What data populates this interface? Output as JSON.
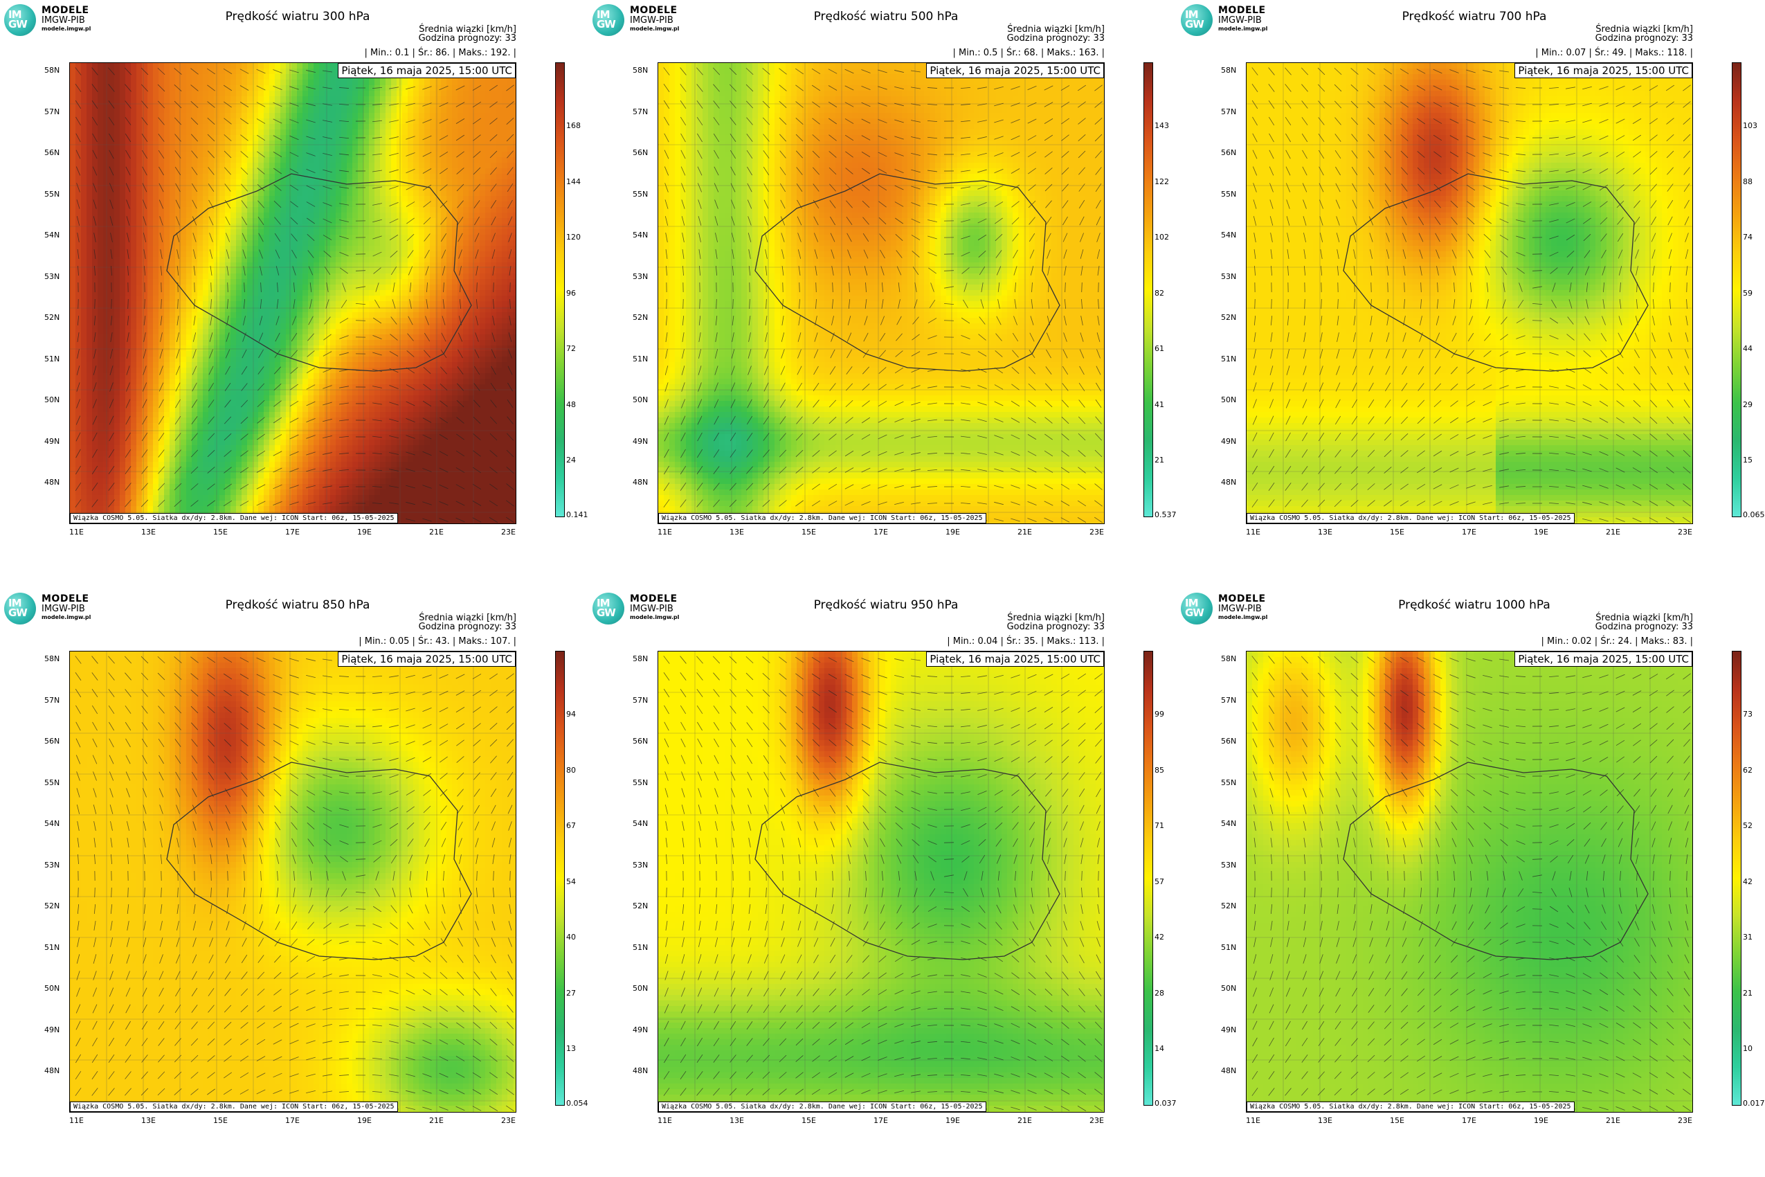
{
  "logo": {
    "line1": "MODELE",
    "line2": "IMGW-PIB",
    "line3": "modele.imgw.pl",
    "mark": "IM GW"
  },
  "common": {
    "info_line1": "Średnia wiązki [km/h]",
    "info_line2": "Godzina prognozy: 33",
    "date": "Piątek, 16 maja 2025, 15:00 UTC",
    "footer": "Wiązka COSMO 5.05. Siatka dx/dy: 2.8km. Dane wej: ICON Start: 06z, 15-05-2025",
    "lat_labels": [
      "58N",
      "57N",
      "56N",
      "55N",
      "54N",
      "53N",
      "52N",
      "51N",
      "50N",
      "49N",
      "48N"
    ],
    "lon_labels": [
      "11E",
      "13E",
      "15E",
      "17E",
      "19E",
      "21E",
      "23E"
    ]
  },
  "colorbar_colors": [
    "#5ee8d6",
    "#2fcf9e",
    "#2bb870",
    "#3cc24a",
    "#7fd435",
    "#c6e32a",
    "#fff200",
    "#fccd0c",
    "#f5a20f",
    "#ec7a15",
    "#d9531a",
    "#b8331b",
    "#7a2418"
  ],
  "panels": [
    {
      "title": "Prędkość wiatru 300 hPa",
      "stats": "| Min.:     0.1 | Śr.:     86. | Maks.:    192. |",
      "ticks": [
        "168",
        "144",
        "120",
        "96",
        "72",
        "48",
        "24",
        "0.141"
      ]
    },
    {
      "title": "Prędkość wiatru 500 hPa",
      "stats": "| Min.:     0.5 | Śr.:     68. | Maks.:    163. |",
      "ticks": [
        "143",
        "122",
        "102",
        "82",
        "61",
        "41",
        "21",
        "0.537"
      ]
    },
    {
      "title": "Prędkość wiatru 700 hPa",
      "stats": "| Min.:    0.07 | Śr.:     49. | Maks.:    118. |",
      "ticks": [
        "103",
        "88",
        "74",
        "59",
        "44",
        "29",
        "15",
        "0.065"
      ]
    },
    {
      "title": "Prędkość wiatru 850 hPa",
      "stats": "| Min.:    0.05 | Śr.:     43. | Maks.:    107. |",
      "ticks": [
        "94",
        "80",
        "67",
        "54",
        "40",
        "27",
        "13",
        "0.054"
      ]
    },
    {
      "title": "Prędkość wiatru 950 hPa",
      "stats": "| Min.:    0.04 | Śr.:     35. | Maks.:    113. |",
      "ticks": [
        "99",
        "85",
        "71",
        "57",
        "42",
        "28",
        "14",
        "0.037"
      ]
    },
    {
      "title": "Prędkość wiatru 1000 hPa",
      "stats": "| Min.:    0.02 | Śr.:     24. | Maks.:     83. |",
      "ticks": [
        "73",
        "62",
        "52",
        "42",
        "31",
        "21",
        "10",
        "0.017"
      ]
    }
  ]
}
